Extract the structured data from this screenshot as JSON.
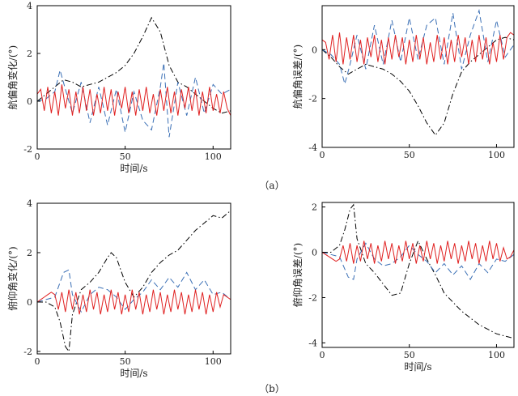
{
  "captions": [
    "（a）",
    "（b）"
  ],
  "chart_data": [
    {
      "type": "line",
      "xlabel": "时间/s",
      "ylabel": "航偏角变化/(°)",
      "xlim": [
        0,
        110
      ],
      "ylim": [
        -2,
        4
      ],
      "xticks": [
        0,
        50,
        100
      ],
      "yticks": [
        -2,
        0,
        2,
        4
      ],
      "grid": false,
      "series": [
        {
          "style": "dashdot",
          "color": "#000000",
          "x": [
            0,
            5,
            10,
            15,
            20,
            25,
            30,
            35,
            40,
            45,
            50,
            55,
            60,
            65,
            70,
            75,
            80,
            85,
            90,
            95,
            100,
            105,
            110
          ],
          "y": [
            0,
            0.3,
            0.6,
            0.9,
            0.8,
            0.6,
            0.7,
            0.8,
            1.0,
            1.2,
            1.5,
            2.0,
            2.7,
            3.5,
            2.9,
            1.5,
            0.8,
            0.6,
            0.3,
            0.0,
            -0.3,
            -0.5,
            -0.4
          ]
        },
        {
          "style": "dashed",
          "color": "#3a6fb5",
          "x": [
            0,
            5,
            10,
            13,
            16,
            20,
            25,
            30,
            35,
            40,
            45,
            50,
            55,
            60,
            65,
            70,
            72,
            75,
            80,
            85,
            90,
            95,
            100,
            105,
            110
          ],
          "y": [
            0,
            0.1,
            0.4,
            1.3,
            0.5,
            -0.5,
            0.8,
            -0.9,
            0.6,
            -1.0,
            0.5,
            -1.3,
            0.4,
            -0.8,
            -1.2,
            0.6,
            1.6,
            -1.5,
            0.8,
            -0.6,
            1.0,
            -0.5,
            0.7,
            0.3,
            0.5
          ]
        },
        {
          "style": "solid",
          "color": "#e02020",
          "x": [
            0,
            2,
            4,
            6,
            8,
            10,
            12,
            14,
            16,
            18,
            20,
            22,
            24,
            26,
            28,
            30,
            32,
            34,
            36,
            38,
            40,
            42,
            44,
            46,
            48,
            50,
            52,
            54,
            56,
            58,
            60,
            62,
            64,
            66,
            68,
            70,
            72,
            74,
            76,
            78,
            80,
            82,
            84,
            86,
            88,
            90,
            92,
            94,
            96,
            98,
            100,
            102,
            104,
            106,
            108,
            110
          ],
          "y": [
            0.3,
            0.5,
            -0.4,
            0.6,
            -0.5,
            0.4,
            -0.6,
            0.7,
            -0.3,
            0.5,
            -0.6,
            0.4,
            -0.5,
            0.6,
            -0.4,
            0.5,
            -0.6,
            0.3,
            -0.5,
            0.6,
            -0.4,
            0.5,
            -0.6,
            0.4,
            -0.3,
            0.6,
            -0.5,
            0.4,
            -0.6,
            0.5,
            -0.4,
            0.6,
            -0.5,
            0.3,
            -0.6,
            0.5,
            -0.4,
            0.6,
            -0.5,
            0.4,
            -0.6,
            0.5,
            -0.3,
            0.6,
            -0.4,
            0.5,
            -0.6,
            0.4,
            -0.5,
            0.6,
            -0.4,
            0.3,
            -0.5,
            0.4,
            -0.3,
            -0.6
          ]
        }
      ]
    },
    {
      "type": "line",
      "xlabel": "",
      "ylabel": "航偏角误差/(°)",
      "xlim": [
        0,
        110
      ],
      "ylim": [
        -4,
        1.8
      ],
      "xticks": [
        0,
        50,
        100
      ],
      "yticks": [
        -4,
        -2,
        0
      ],
      "grid": false,
      "series": [
        {
          "style": "dashdot",
          "color": "#000000",
          "x": [
            0,
            5,
            10,
            15,
            20,
            25,
            30,
            35,
            40,
            45,
            50,
            55,
            60,
            65,
            70,
            75,
            80,
            85,
            90,
            95,
            100,
            105,
            110
          ],
          "y": [
            0,
            -0.3,
            -0.7,
            -1.0,
            -0.8,
            -0.6,
            -0.7,
            -0.8,
            -1.0,
            -1.3,
            -1.7,
            -2.3,
            -3.0,
            -3.5,
            -3.0,
            -1.8,
            -0.9,
            -0.5,
            -0.2,
            0.1,
            0.4,
            0.5,
            0.4
          ]
        },
        {
          "style": "dashed",
          "color": "#3a6fb5",
          "x": [
            0,
            5,
            10,
            13,
            16,
            20,
            25,
            30,
            35,
            40,
            45,
            50,
            55,
            60,
            65,
            70,
            75,
            80,
            85,
            90,
            95,
            100,
            105,
            110
          ],
          "y": [
            0,
            -0.2,
            -0.6,
            -1.4,
            -0.6,
            0.6,
            -0.8,
            1.0,
            -0.6,
            1.2,
            -0.5,
            1.3,
            -0.4,
            1.0,
            1.3,
            -0.6,
            1.5,
            -0.8,
            0.6,
            1.6,
            -0.5,
            1.2,
            -0.3,
            0.2
          ]
        },
        {
          "style": "solid",
          "color": "#e02020",
          "x": [
            0,
            2,
            4,
            6,
            8,
            10,
            12,
            14,
            16,
            18,
            20,
            22,
            24,
            26,
            28,
            30,
            32,
            34,
            36,
            38,
            40,
            42,
            44,
            46,
            48,
            50,
            52,
            54,
            56,
            58,
            60,
            62,
            64,
            66,
            68,
            70,
            72,
            74,
            76,
            78,
            80,
            82,
            84,
            86,
            88,
            90,
            92,
            94,
            96,
            98,
            100,
            102,
            104,
            106,
            108,
            110
          ],
          "y": [
            0.4,
            0.3,
            -0.4,
            0.6,
            -0.5,
            0.7,
            -0.6,
            0.5,
            -0.4,
            0.6,
            -0.5,
            0.4,
            -0.6,
            0.5,
            -0.3,
            0.6,
            -0.5,
            0.4,
            -0.6,
            0.5,
            -0.4,
            0.6,
            -0.3,
            0.5,
            -0.6,
            0.4,
            -0.5,
            0.6,
            -0.4,
            0.5,
            -0.6,
            0.3,
            -0.5,
            0.6,
            -0.4,
            0.5,
            -0.6,
            0.4,
            -0.5,
            0.6,
            -0.3,
            0.5,
            -0.6,
            0.4,
            -0.5,
            0.6,
            -0.4,
            0.5,
            -0.6,
            0.3,
            -0.5,
            0.6,
            -0.4,
            0.5,
            0.7,
            0.6
          ]
        }
      ]
    },
    {
      "type": "line",
      "xlabel": "时间/s",
      "ylabel": "俯仰角变化/(°)",
      "xlim": [
        0,
        110
      ],
      "ylim": [
        -2.1,
        4
      ],
      "xticks": [
        0,
        50,
        100
      ],
      "yticks": [
        -2,
        0,
        2,
        4
      ],
      "grid": false,
      "series": [
        {
          "style": "dashdot",
          "color": "#000000",
          "x": [
            0,
            5,
            10,
            13,
            16,
            18,
            20,
            25,
            30,
            35,
            40,
            42,
            45,
            50,
            55,
            60,
            65,
            70,
            75,
            80,
            85,
            90,
            95,
            100,
            105,
            110
          ],
          "y": [
            0,
            0,
            -0.2,
            -0.8,
            -1.8,
            -2.0,
            -0.5,
            0.5,
            0.8,
            1.2,
            1.8,
            2.0,
            1.8,
            0.8,
            0.2,
            0.6,
            1.2,
            1.6,
            1.9,
            2.1,
            2.5,
            2.9,
            3.2,
            3.5,
            3.4,
            3.7
          ]
        },
        {
          "style": "dashed",
          "color": "#3a6fb5",
          "x": [
            0,
            5,
            10,
            15,
            18,
            20,
            25,
            30,
            35,
            40,
            45,
            50,
            55,
            60,
            65,
            70,
            75,
            80,
            85,
            90,
            95,
            100,
            105,
            110
          ],
          "y": [
            0,
            0.1,
            0.2,
            1.2,
            1.3,
            0.3,
            -0.4,
            0.3,
            0.6,
            0.5,
            0.2,
            -0.3,
            0.1,
            0.4,
            0.9,
            0.5,
            1.0,
            0.6,
            1.2,
            0.5,
            0.9,
            0.3,
            0.4,
            0.1
          ]
        },
        {
          "style": "solid",
          "color": "#e02020",
          "x": [
            0,
            2,
            4,
            6,
            8,
            10,
            12,
            14,
            16,
            18,
            20,
            22,
            24,
            26,
            28,
            30,
            32,
            34,
            36,
            38,
            40,
            42,
            44,
            46,
            48,
            50,
            52,
            54,
            56,
            58,
            60,
            62,
            64,
            66,
            68,
            70,
            72,
            74,
            76,
            78,
            80,
            82,
            84,
            86,
            88,
            90,
            92,
            94,
            96,
            98,
            100,
            102,
            104,
            106,
            108,
            110
          ],
          "y": [
            0,
            0.1,
            0.2,
            0.3,
            0.4,
            0.3,
            -0.3,
            0.4,
            -0.4,
            0.5,
            -0.3,
            0.4,
            -0.5,
            0.3,
            -0.4,
            0.5,
            -0.3,
            0.4,
            -0.5,
            0.3,
            -0.4,
            0.5,
            -0.3,
            0.4,
            -0.5,
            0.3,
            -0.4,
            0.5,
            -0.3,
            0.4,
            -0.5,
            0.3,
            -0.4,
            0.5,
            -0.3,
            0.4,
            -0.5,
            0.3,
            -0.4,
            0.5,
            -0.3,
            0.4,
            -0.5,
            0.3,
            -0.4,
            0.5,
            -0.3,
            0.4,
            -0.5,
            0.3,
            -0.4,
            0.4,
            -0.2,
            0.3,
            0.2,
            0.1
          ]
        }
      ]
    },
    {
      "type": "line",
      "xlabel": "时间/s",
      "ylabel": "俯仰角误差/(°)",
      "xlim": [
        0,
        110
      ],
      "ylim": [
        -4.2,
        2.2
      ],
      "xticks": [
        0,
        50,
        100
      ],
      "yticks": [
        -4,
        -2,
        0,
        2
      ],
      "grid": false,
      "series": [
        {
          "style": "dashdot",
          "color": "#000000",
          "x": [
            0,
            5,
            10,
            13,
            16,
            18,
            20,
            25,
            30,
            35,
            40,
            45,
            50,
            55,
            60,
            65,
            70,
            75,
            80,
            85,
            90,
            95,
            100,
            105,
            110
          ],
          "y": [
            0,
            0,
            0.3,
            1.0,
            1.9,
            2.1,
            0.6,
            -0.5,
            -0.9,
            -1.4,
            -1.9,
            -1.8,
            -0.5,
            0.5,
            -0.3,
            -1.0,
            -1.8,
            -2.2,
            -2.6,
            -2.9,
            -3.2,
            -3.4,
            -3.6,
            -3.7,
            -3.8
          ]
        },
        {
          "style": "dashed",
          "color": "#3a6fb5",
          "x": [
            0,
            5,
            10,
            15,
            18,
            20,
            25,
            30,
            35,
            40,
            45,
            50,
            55,
            60,
            65,
            70,
            75,
            80,
            85,
            90,
            95,
            100,
            105,
            110
          ],
          "y": [
            0,
            -0.1,
            -0.2,
            -1.1,
            -1.2,
            -0.3,
            0.4,
            -0.3,
            -0.6,
            -0.5,
            -0.2,
            0.3,
            -0.1,
            -0.4,
            -0.9,
            -0.5,
            -1.0,
            -0.6,
            -1.2,
            -0.5,
            -0.9,
            -0.3,
            -0.4,
            -0.1
          ]
        },
        {
          "style": "solid",
          "color": "#e02020",
          "x": [
            0,
            2,
            4,
            6,
            8,
            10,
            12,
            14,
            16,
            18,
            20,
            22,
            24,
            26,
            28,
            30,
            32,
            34,
            36,
            38,
            40,
            42,
            44,
            46,
            48,
            50,
            52,
            54,
            56,
            58,
            60,
            62,
            64,
            66,
            68,
            70,
            72,
            74,
            76,
            78,
            80,
            82,
            84,
            86,
            88,
            90,
            92,
            94,
            96,
            98,
            100,
            102,
            104,
            106,
            108,
            110
          ],
          "y": [
            0,
            -0.1,
            -0.2,
            -0.3,
            -0.4,
            -0.3,
            0.3,
            -0.4,
            0.4,
            -0.5,
            0.3,
            -0.4,
            0.5,
            -0.3,
            0.4,
            -0.5,
            0.3,
            -0.4,
            0.5,
            -0.3,
            0.4,
            -0.5,
            0.3,
            -0.4,
            0.5,
            -0.3,
            0.4,
            -0.5,
            0.3,
            -0.4,
            0.5,
            -0.3,
            0.4,
            -0.5,
            0.3,
            -0.4,
            0.5,
            -0.3,
            0.4,
            -0.5,
            0.3,
            -0.4,
            0.5,
            -0.3,
            0.4,
            -0.5,
            0.3,
            -0.4,
            0.5,
            -0.3,
            0.4,
            -0.4,
            0.2,
            -0.3,
            -0.2,
            0.1
          ]
        }
      ]
    }
  ]
}
